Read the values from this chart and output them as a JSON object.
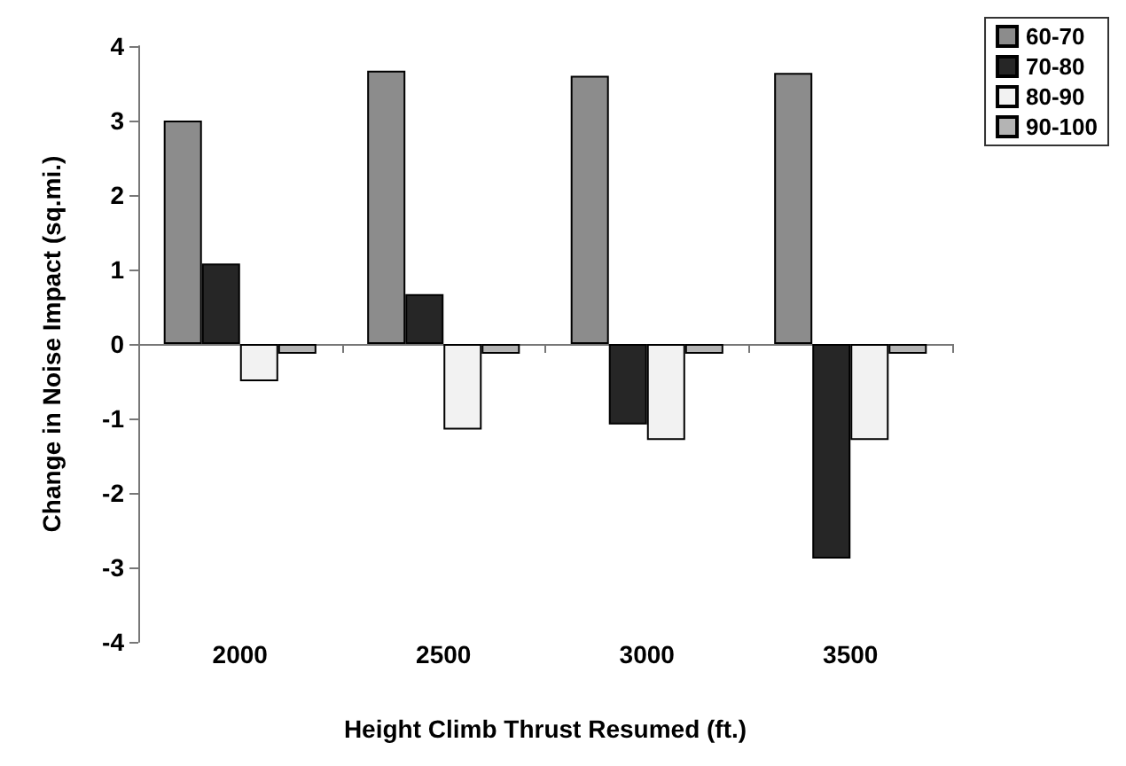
{
  "chart_data": {
    "type": "bar",
    "xlabel": "Height Climb Thrust Resumed (ft.)",
    "ylabel": "Change in Noise Impact (sq.mi.)",
    "categories": [
      "2000",
      "2500",
      "3000",
      "3500"
    ],
    "series": [
      {
        "name": "60-70",
        "color": "#8c8c8c",
        "values": [
          3.0,
          3.67,
          3.6,
          3.64
        ]
      },
      {
        "name": "70-80",
        "color": "#262626",
        "values": [
          1.08,
          0.67,
          -1.08,
          -2.88
        ]
      },
      {
        "name": "80-90",
        "color": "#f2f2f2",
        "values": [
          -0.5,
          -1.15,
          -1.29,
          -1.29
        ]
      },
      {
        "name": "90-100",
        "color": "#b4b4b4",
        "values": [
          -0.13,
          -0.13,
          -0.13,
          -0.13
        ]
      }
    ],
    "ylim": [
      -4,
      4
    ],
    "yticks": [
      -4,
      -3,
      -2,
      -1,
      0,
      1,
      2,
      3,
      4
    ],
    "legend": "top right"
  }
}
